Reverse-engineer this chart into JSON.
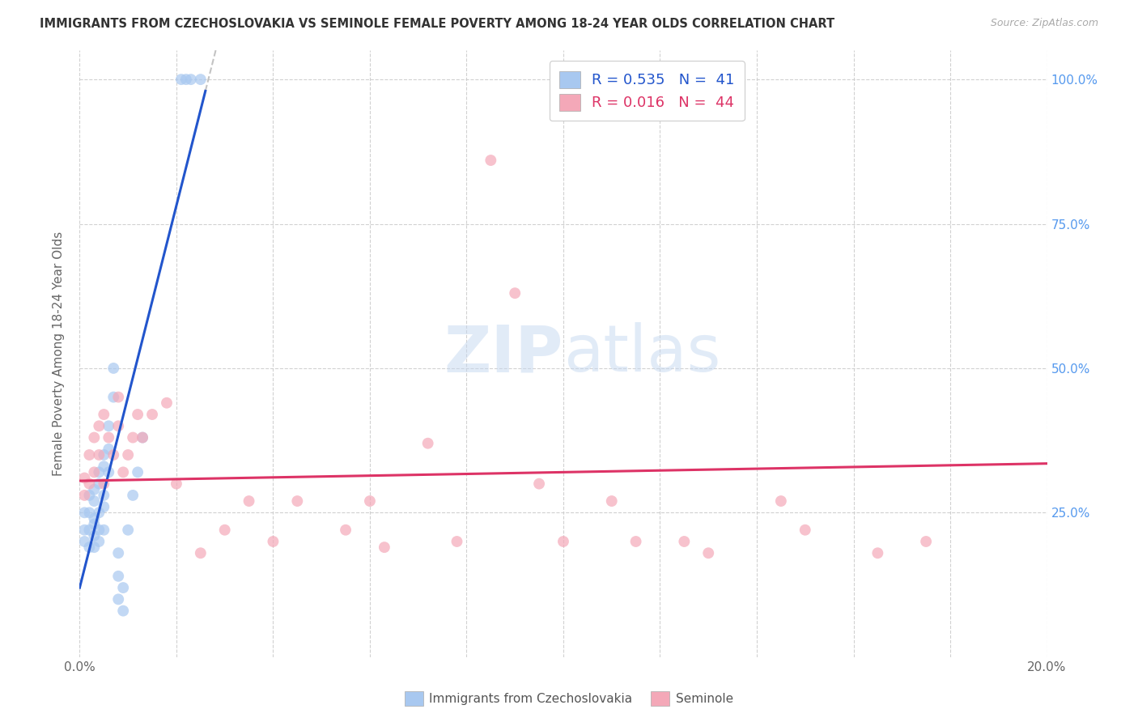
{
  "title": "IMMIGRANTS FROM CZECHOSLOVAKIA VS SEMINOLE FEMALE POVERTY AMONG 18-24 YEAR OLDS CORRELATION CHART",
  "source": "Source: ZipAtlas.com",
  "ylabel": "Female Poverty Among 18-24 Year Olds",
  "xlim": [
    0.0,
    0.2
  ],
  "ylim": [
    0.0,
    1.05
  ],
  "ytick_positions_right": [
    0.25,
    0.5,
    0.75,
    1.0
  ],
  "ytick_labels_right": [
    "25.0%",
    "50.0%",
    "75.0%",
    "100.0%"
  ],
  "grid_color": "#cccccc",
  "background_color": "#ffffff",
  "legend_R_blue": "0.535",
  "legend_N_blue": "41",
  "legend_R_pink": "0.016",
  "legend_N_pink": "44",
  "blue_color": "#a8c8f0",
  "pink_color": "#f4a8b8",
  "trendline_blue_color": "#2255cc",
  "trendline_pink_color": "#dd3366",
  "blue_scatter_x": [
    0.001,
    0.001,
    0.001,
    0.002,
    0.002,
    0.002,
    0.002,
    0.003,
    0.003,
    0.003,
    0.003,
    0.003,
    0.003,
    0.004,
    0.004,
    0.004,
    0.004,
    0.004,
    0.005,
    0.005,
    0.005,
    0.005,
    0.005,
    0.006,
    0.006,
    0.006,
    0.007,
    0.007,
    0.008,
    0.008,
    0.008,
    0.009,
    0.009,
    0.01,
    0.011,
    0.012,
    0.013,
    0.021,
    0.022,
    0.023,
    0.025
  ],
  "blue_scatter_y": [
    0.2,
    0.22,
    0.25,
    0.19,
    0.22,
    0.25,
    0.28,
    0.19,
    0.21,
    0.23,
    0.24,
    0.27,
    0.29,
    0.2,
    0.22,
    0.25,
    0.3,
    0.32,
    0.22,
    0.26,
    0.28,
    0.33,
    0.35,
    0.32,
    0.36,
    0.4,
    0.45,
    0.5,
    0.1,
    0.14,
    0.18,
    0.08,
    0.12,
    0.22,
    0.28,
    0.32,
    0.38,
    1.0,
    1.0,
    1.0,
    1.0
  ],
  "pink_scatter_x": [
    0.001,
    0.001,
    0.002,
    0.002,
    0.003,
    0.003,
    0.004,
    0.004,
    0.005,
    0.005,
    0.006,
    0.007,
    0.008,
    0.008,
    0.009,
    0.01,
    0.011,
    0.012,
    0.013,
    0.015,
    0.018,
    0.02,
    0.025,
    0.03,
    0.035,
    0.04,
    0.045,
    0.055,
    0.06,
    0.063,
    0.072,
    0.078,
    0.085,
    0.09,
    0.095,
    0.1,
    0.11,
    0.115,
    0.125,
    0.13,
    0.145,
    0.15,
    0.165,
    0.175
  ],
  "pink_scatter_y": [
    0.28,
    0.31,
    0.3,
    0.35,
    0.32,
    0.38,
    0.35,
    0.4,
    0.3,
    0.42,
    0.38,
    0.35,
    0.4,
    0.45,
    0.32,
    0.35,
    0.38,
    0.42,
    0.38,
    0.42,
    0.44,
    0.3,
    0.18,
    0.22,
    0.27,
    0.2,
    0.27,
    0.22,
    0.27,
    0.19,
    0.37,
    0.2,
    0.86,
    0.63,
    0.3,
    0.2,
    0.27,
    0.2,
    0.2,
    0.18,
    0.27,
    0.22,
    0.18,
    0.2
  ],
  "blue_trend_x0": 0.0,
  "blue_trend_x1": 0.026,
  "blue_trend_y0": 0.12,
  "blue_trend_y1": 0.98,
  "blue_trend_ext_x0": 0.026,
  "blue_trend_ext_x1": 0.042,
  "pink_trend_x0": 0.0,
  "pink_trend_x1": 0.2,
  "pink_trend_y0": 0.305,
  "pink_trend_y1": 0.335
}
